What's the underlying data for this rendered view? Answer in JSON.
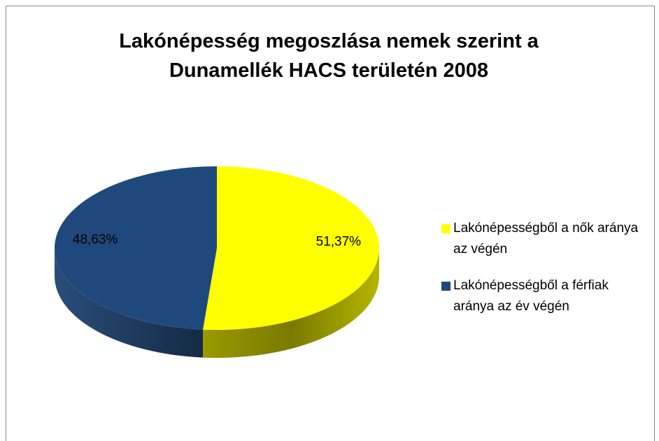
{
  "chart_data": {
    "type": "pie",
    "title": "Lakónépesség megoszlása nemek szerint a Dunamellék HACS területén 2008",
    "categories": [
      "Lakónépességből a nők aránya az végén",
      "Lakónépességből a férfiak aránya az év végén"
    ],
    "values": [
      51.37,
      48.63
    ],
    "value_labels": [
      "51,37%",
      "48,63%"
    ],
    "colors": [
      "#ffff00",
      "#1f497d"
    ],
    "legend": "right"
  }
}
